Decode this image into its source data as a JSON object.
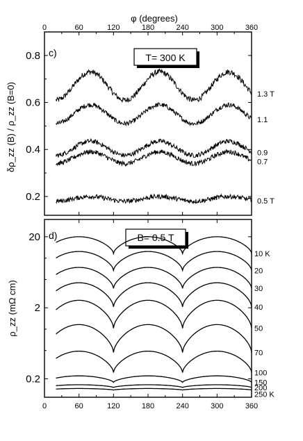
{
  "top_axis_label": "φ (degrees)",
  "bottom_axis_ticks": [
    "0",
    "60",
    "120",
    "180",
    "240",
    "300",
    "360"
  ],
  "panels": {
    "c": {
      "tag": "c)",
      "box_label": "T= 300 K",
      "ylabel": "δρ_zz (B) / ρ_zz (B=0)"
    },
    "d": {
      "tag": "d)",
      "box_label": "B= 0.5 T",
      "ylabel": "ρ_zz (mΩ cm)"
    }
  },
  "chart_data": [
    {
      "type": "line",
      "panel": "c",
      "xlabel": "φ (degrees)",
      "xlim": [
        0,
        360
      ],
      "x_ticks": [
        0,
        60,
        120,
        180,
        240,
        300,
        360
      ],
      "ylim": [
        0.12,
        0.9
      ],
      "y_ticks": [
        0.2,
        0.4,
        0.6,
        0.8
      ],
      "y_tick_labels": [
        "0.2",
        "0.4",
        "0.6",
        "0.8"
      ],
      "series": [
        {
          "name": "1.3 T",
          "x_range": [
            20,
            360
          ],
          "mean": 0.67,
          "amplitude": 0.06,
          "period": 120,
          "phase_deg": 50,
          "noise": 0.012
        },
        {
          "name": "1.1",
          "x_range": [
            20,
            360
          ],
          "mean": 0.55,
          "amplitude": 0.04,
          "period": 120,
          "phase_deg": 50,
          "noise": 0.01
        },
        {
          "name": "0.9",
          "x_range": [
            20,
            360
          ],
          "mean": 0.405,
          "amplitude": 0.03,
          "period": 120,
          "phase_deg": 50,
          "noise": 0.01
        },
        {
          "name": "0.7",
          "x_range": [
            20,
            360
          ],
          "mean": 0.365,
          "amplitude": 0.025,
          "period": 120,
          "phase_deg": 50,
          "noise": 0.01
        },
        {
          "name": "0.5 T",
          "x_range": [
            20,
            360
          ],
          "mean": 0.19,
          "amplitude": 0.01,
          "period": 120,
          "phase_deg": 50,
          "noise": 0.01
        }
      ]
    },
    {
      "type": "line",
      "panel": "d",
      "xlabel": "",
      "xlim": [
        0,
        360
      ],
      "x_ticks": [
        0,
        60,
        120,
        180,
        240,
        300,
        360
      ],
      "yscale": "log",
      "ylim": [
        0.11,
        35
      ],
      "y_ticks": [
        0.2,
        2,
        20
      ],
      "y_tick_labels": [
        "0.2",
        "2",
        "20"
      ],
      "series": [
        {
          "name": "10 K",
          "max": 20,
          "min": 11.6,
          "period": 120,
          "peak_deg": 60
        },
        {
          "name": "20",
          "max": 12.4,
          "min": 6.7,
          "period": 120,
          "peak_deg": 60
        },
        {
          "name": "30",
          "max": 7.4,
          "min": 3.75,
          "period": 120,
          "peak_deg": 60
        },
        {
          "name": "40",
          "max": 4.5,
          "min": 2.06,
          "period": 120,
          "peak_deg": 60
        },
        {
          "name": "50",
          "max": 2.55,
          "min": 1.03,
          "period": 120,
          "peak_deg": 60
        },
        {
          "name": "70",
          "max": 1.16,
          "min": 0.47,
          "period": 120,
          "peak_deg": 60
        },
        {
          "name": "100",
          "max": 0.49,
          "min": 0.245,
          "period": 120,
          "peak_deg": 60
        },
        {
          "name": "150",
          "max": 0.22,
          "min": 0.178,
          "period": 120,
          "peak_deg": 60
        },
        {
          "name": "200",
          "max": 0.165,
          "min": 0.151,
          "period": 120,
          "peak_deg": 60
        },
        {
          "name": "250 K",
          "max": 0.146,
          "min": 0.139,
          "period": 120,
          "peak_deg": 60
        }
      ]
    }
  ]
}
